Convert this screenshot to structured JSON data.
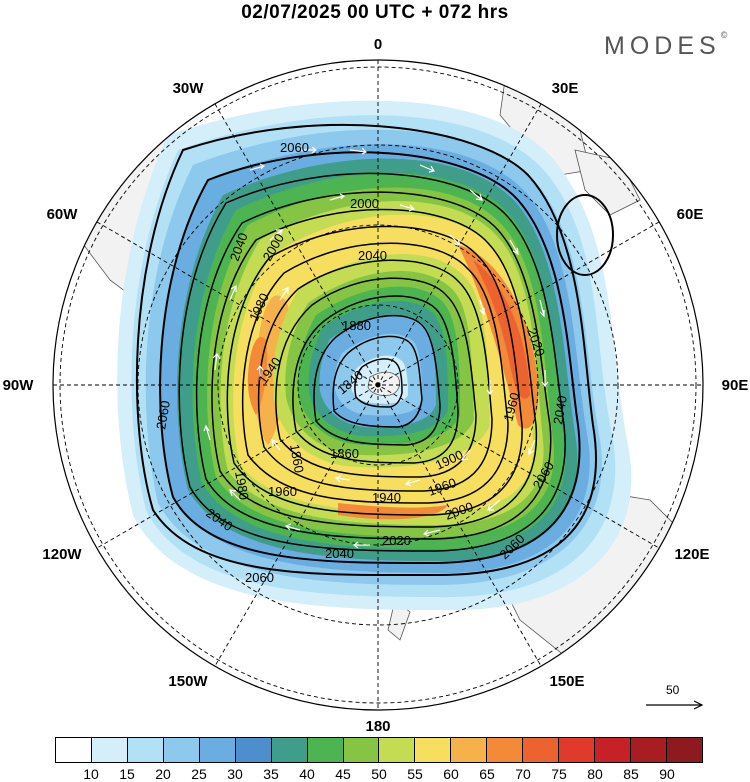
{
  "title": "02/07/2025  00 UTC  + 072 hrs",
  "brand": "MODES",
  "brand_mark": "©",
  "longitude_labels": {
    "lon0": "0",
    "lon30e": "30E",
    "lon60e": "60E",
    "lon90e": "90E",
    "lon120e": "120E",
    "lon150e": "150E",
    "lon180": "180",
    "lon150w": "150W",
    "lon120w": "120W",
    "lon90w": "90W",
    "lon60w": "60W",
    "lon30w": "30W"
  },
  "contour_labels": [
    "2060",
    "2060",
    "2060",
    "2060",
    "2060",
    "2040",
    "2040",
    "2040",
    "2040",
    "2040",
    "2020",
    "2020",
    "2000",
    "2000",
    "2000",
    "1980",
    "1980",
    "1960",
    "1960",
    "1960",
    "1940",
    "1940",
    "1920",
    "1900",
    "1880",
    "1860",
    "1840",
    "1860"
  ],
  "reference_vector": {
    "label": "50",
    "arrow": "right-arrow-icon"
  },
  "colorbar": {
    "labels": [
      "10",
      "15",
      "20",
      "25",
      "30",
      "35",
      "40",
      "45",
      "50",
      "55",
      "60",
      "65",
      "70",
      "75",
      "80",
      "85",
      "90"
    ],
    "colors": [
      "#ffffff",
      "#d4eefa",
      "#b2e0f5",
      "#8cc9ec",
      "#6aade0",
      "#4d8fcc",
      "#3e9e8a",
      "#4cb551",
      "#86c544",
      "#c4dc52",
      "#f6de5e",
      "#f6b24a",
      "#f28a38",
      "#ec6330",
      "#df3a2a",
      "#c62126",
      "#a81d22",
      "#8c1a1f"
    ]
  },
  "colors": {
    "land": "#f2f2f2",
    "coast": "#555555",
    "contour": "#000000",
    "wind_vector": "#ffffff",
    "grid": "#000000"
  }
}
